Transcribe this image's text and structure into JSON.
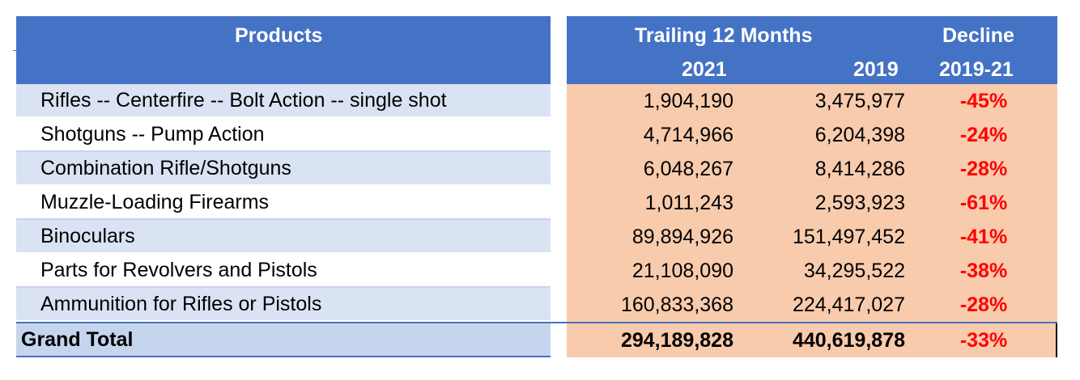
{
  "header": {
    "products": "Products",
    "trailing": "Trailing 12 Months",
    "decline": "Decline",
    "year_2021": "2021",
    "year_2019": "2019",
    "decline_period": "2019-21"
  },
  "rows": [
    {
      "product": "Rifles -- Centerfire -- Bolt Action -- single shot",
      "v2021": "1,904,190",
      "v2019": "3,475,977",
      "decline": "-45%"
    },
    {
      "product": "Shotguns -- Pump Action",
      "v2021": "4,714,966",
      "v2019": "6,204,398",
      "decline": "-24%"
    },
    {
      "product": "Combination Rifle/Shotguns",
      "v2021": "6,048,267",
      "v2019": "8,414,286",
      "decline": "-28%"
    },
    {
      "product": "Muzzle-Loading Firearms",
      "v2021": "1,011,243",
      "v2019": "2,593,923",
      "decline": "-61%"
    },
    {
      "product": "Binoculars",
      "v2021": "89,894,926",
      "v2019": "151,497,452",
      "decline": "-41%"
    },
    {
      "product": "Parts for Revolvers and Pistols",
      "v2021": "21,108,090",
      "v2019": "34,295,522",
      "decline": "-38%"
    },
    {
      "product": "Ammunition for Rifles or Pistols",
      "v2021": "160,833,368",
      "v2019": "224,417,027",
      "decline": "-28%"
    }
  ],
  "total": {
    "label": "Grand Total",
    "v2021": "294,189,828",
    "v2019": "440,619,878",
    "decline": "-33%"
  },
  "colors": {
    "header_blue": "#4472c4",
    "label_band": "#dae3f3",
    "value_fill": "#f8cbad",
    "negative_red": "#ff0000"
  }
}
